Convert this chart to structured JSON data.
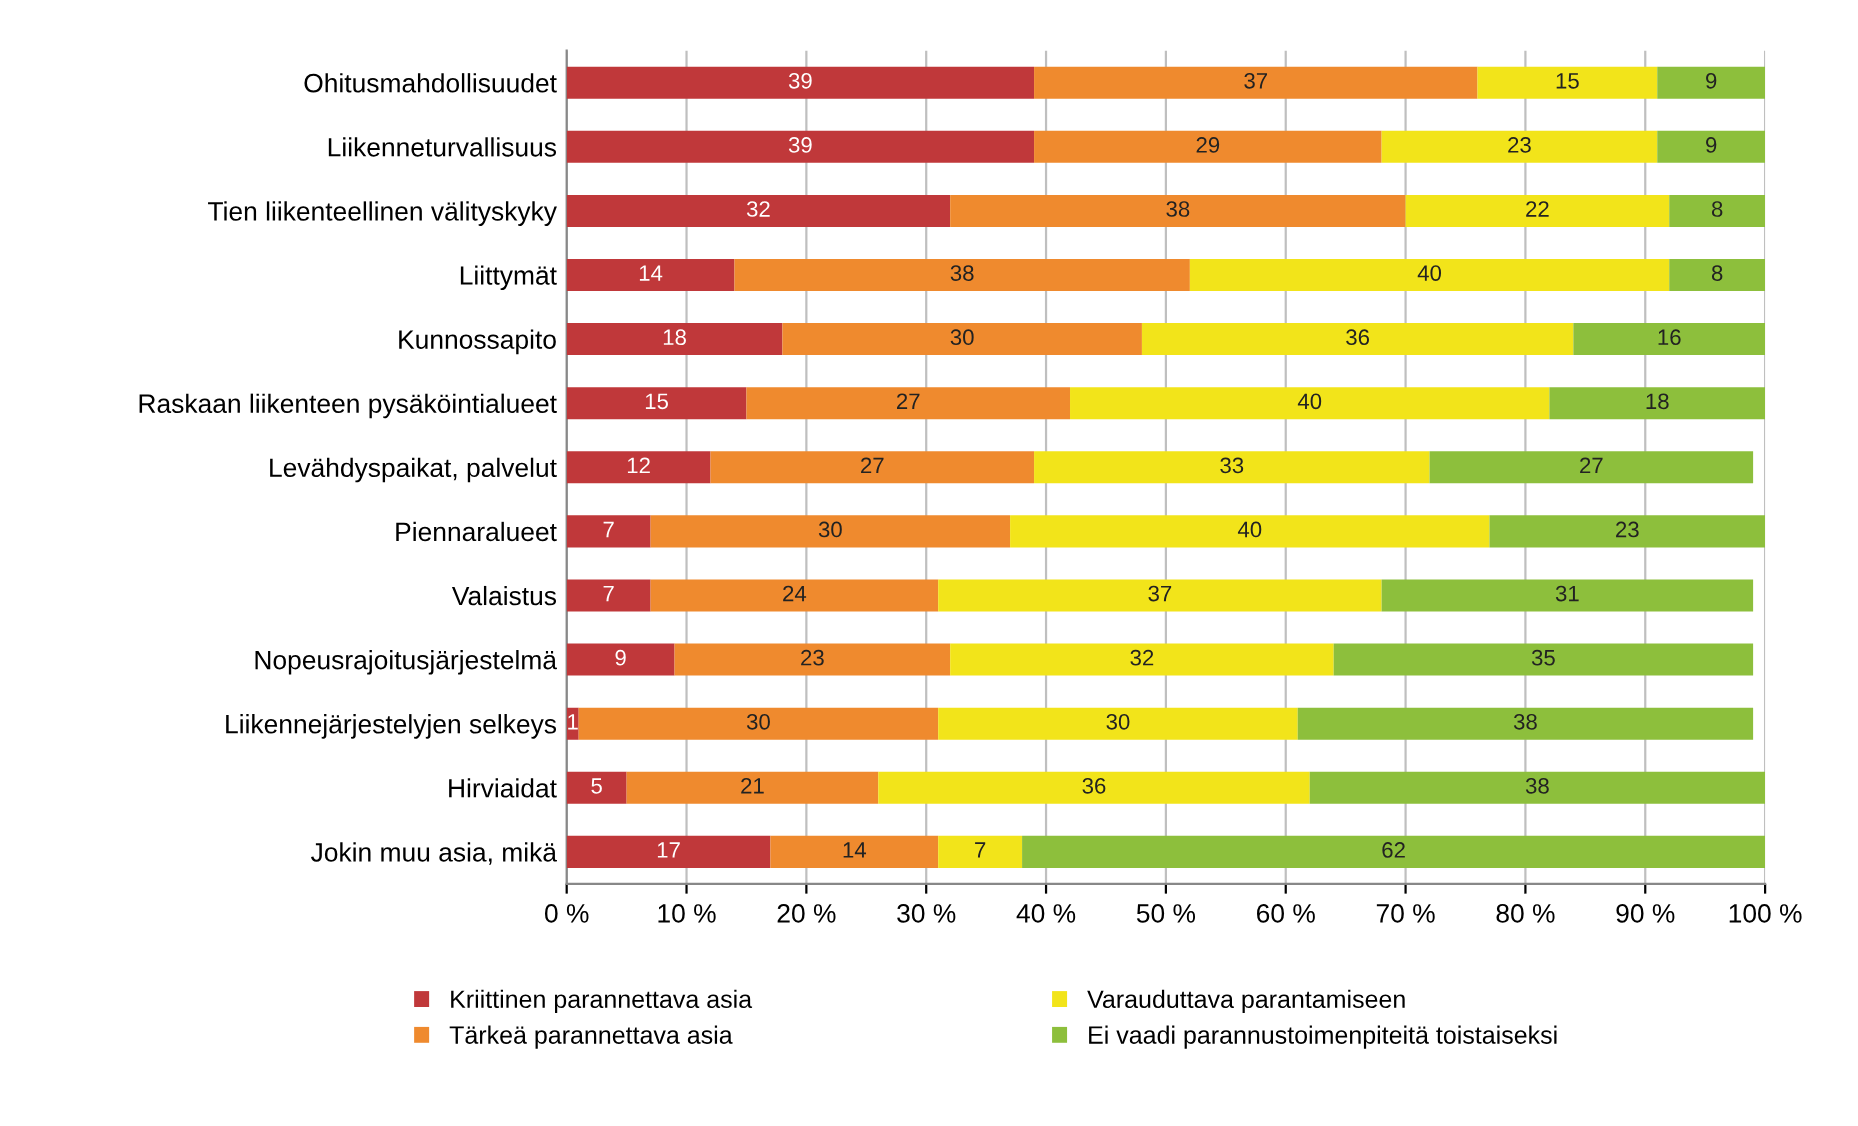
{
  "chart_data": {
    "type": "bar",
    "orientation": "horizontal",
    "stacked": true,
    "data_labels": true,
    "grid": "x",
    "legend": "bottom",
    "categories": [
      "Ohitusmahdollisuudet",
      "Liikenneturvallisuus",
      "Tien liikenteellinen välityskyky",
      "Liittymät",
      "Kunnossapito",
      "Raskaan liikenteen pysäköintialueet",
      "Levähdyspaikat, palvelut",
      "Piennaralueet",
      "Valaistus",
      "Nopeusrajoitusjärjestelmä",
      "Liikennejärjestelyjen selkeys",
      "Hirviaidat",
      "Jokin muu asia, mikä"
    ],
    "series": [
      {
        "name": "Kriittinen parannettava asia",
        "color": "#c0383a",
        "values": [
          39,
          39,
          32,
          14,
          18,
          15,
          12,
          7,
          7,
          9,
          1,
          5,
          17
        ]
      },
      {
        "name": "Tärkeä parannettava asia",
        "color": "#ef8a2e",
        "values": [
          37,
          29,
          38,
          38,
          30,
          27,
          27,
          30,
          24,
          23,
          30,
          21,
          14
        ]
      },
      {
        "name": "Varauduttava parantamiseen",
        "color": "#f2e41a",
        "values": [
          15,
          23,
          22,
          40,
          36,
          40,
          33,
          40,
          37,
          32,
          30,
          36,
          7
        ]
      },
      {
        "name": "Ei vaadi parannustoimenpiteitä toistaiseksi",
        "color": "#8dbf3c",
        "values": [
          9,
          9,
          8,
          8,
          16,
          18,
          27,
          23,
          31,
          35,
          38,
          38,
          62
        ]
      }
    ],
    "xlim": [
      0,
      100
    ],
    "xticks": [
      {
        "value": 0,
        "label": "0 %"
      },
      {
        "value": 10,
        "label": "10 %"
      },
      {
        "value": 20,
        "label": "20 %"
      },
      {
        "value": 30,
        "label": "30 %"
      },
      {
        "value": 40,
        "label": "40 %"
      },
      {
        "value": 50,
        "label": "50 %"
      },
      {
        "value": 60,
        "label": "60 %"
      },
      {
        "value": 70,
        "label": "70 %"
      },
      {
        "value": 80,
        "label": "80 %"
      },
      {
        "value": 90,
        "label": "90 %"
      },
      {
        "value": 100,
        "label": "100 %"
      }
    ]
  }
}
